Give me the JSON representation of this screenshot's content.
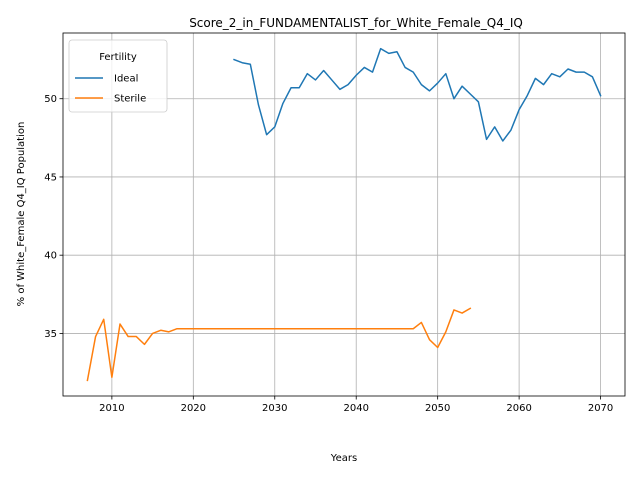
{
  "chart_data": {
    "type": "line",
    "title": "Score_2_in_FUNDAMENTALIST_for_White_Female_Q4_IQ",
    "xlabel": "Years",
    "ylabel": "% of White_Female Q4_IQ Population",
    "xlim": [
      2004,
      2073
    ],
    "ylim": [
      31.0,
      54.2
    ],
    "xticks": [
      2010,
      2020,
      2030,
      2040,
      2050,
      2060,
      2070
    ],
    "yticks": [
      35,
      40,
      45,
      50
    ],
    "grid": true,
    "legend": {
      "title": "Fertility",
      "placement": "top-left"
    },
    "series": [
      {
        "name": "Ideal",
        "color": "#1f77b4",
        "x": [
          2025,
          2026,
          2027,
          2028,
          2029,
          2030,
          2031,
          2032,
          2033,
          2034,
          2035,
          2036,
          2037,
          2038,
          2039,
          2040,
          2041,
          2042,
          2043,
          2044,
          2045,
          2046,
          2047,
          2048,
          2049,
          2050,
          2051,
          2052,
          2053,
          2054,
          2055,
          2056,
          2057,
          2058,
          2059,
          2060,
          2061,
          2062,
          2063,
          2064,
          2065,
          2066,
          2067,
          2068,
          2069,
          2070
        ],
        "y": [
          52.5,
          52.3,
          52.2,
          49.6,
          47.7,
          48.2,
          49.7,
          50.7,
          50.7,
          51.6,
          51.2,
          51.8,
          51.2,
          50.6,
          50.9,
          51.5,
          52.0,
          51.7,
          53.2,
          52.9,
          53.0,
          52.0,
          51.7,
          50.9,
          50.5,
          51.0,
          51.6,
          50.0,
          50.8,
          50.3,
          49.8,
          47.4,
          48.2,
          47.3,
          48.0,
          49.3,
          50.2,
          51.3,
          50.9,
          51.6,
          51.4,
          51.9,
          51.7,
          51.7,
          51.4,
          50.2
        ]
      },
      {
        "name": "Sterile",
        "color": "#ff7f0e",
        "x": [
          2007,
          2008,
          2009,
          2010,
          2011,
          2012,
          2013,
          2014,
          2015,
          2016,
          2017,
          2018,
          2019,
          2020,
          2021,
          2022,
          2023,
          2024,
          2025,
          2026,
          2027,
          2028,
          2029,
          2030,
          2031,
          2032,
          2033,
          2034,
          2035,
          2036,
          2037,
          2038,
          2039,
          2040,
          2041,
          2042,
          2043,
          2044,
          2045,
          2046,
          2047,
          2048,
          2049,
          2050,
          2051,
          2052,
          2053,
          2054
        ],
        "y": [
          32.0,
          34.8,
          35.9,
          32.2,
          35.6,
          34.8,
          34.8,
          34.3,
          35.0,
          35.2,
          35.1,
          35.3,
          35.3,
          35.3,
          35.3,
          35.3,
          35.3,
          35.3,
          35.3,
          35.3,
          35.3,
          35.3,
          35.3,
          35.3,
          35.3,
          35.3,
          35.3,
          35.3,
          35.3,
          35.3,
          35.3,
          35.3,
          35.3,
          35.3,
          35.3,
          35.3,
          35.3,
          35.3,
          35.3,
          35.3,
          35.3,
          35.7,
          34.6,
          34.1,
          35.1,
          36.5,
          36.3,
          36.6
        ]
      }
    ]
  }
}
